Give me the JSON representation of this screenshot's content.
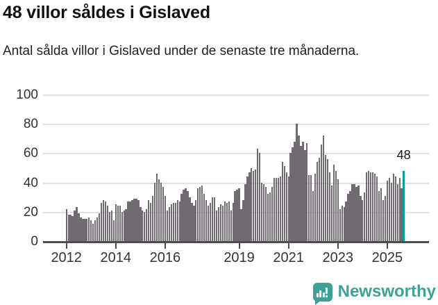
{
  "header": {
    "title": "48 villor såldes i Gislaved",
    "subtitle": "Antal sålda villor i Gislaved under de senaste tre månaderna."
  },
  "chart_data": {
    "type": "bar",
    "title": "48 villor såldes i Gislaved",
    "xlabel": "",
    "ylabel": "",
    "frequency": "monthly",
    "start_month": "2012-01",
    "end_month": "2025-09",
    "ylim": [
      0,
      100
    ],
    "grid": true,
    "legend": false,
    "y_ticks": [
      0,
      20,
      40,
      60,
      80,
      100
    ],
    "x_ticks": [
      {
        "label": "2012",
        "month_index": 0
      },
      {
        "label": "2014",
        "month_index": 24
      },
      {
        "label": "2016",
        "month_index": 48
      },
      {
        "label": "2019",
        "month_index": 84
      },
      {
        "label": "2021",
        "month_index": 108
      },
      {
        "label": "2023",
        "month_index": 132
      },
      {
        "label": "2025",
        "month_index": 156
      }
    ],
    "values": [
      22,
      18,
      18,
      17,
      21,
      23,
      19,
      16,
      15,
      15,
      15,
      16,
      14,
      12,
      14,
      16,
      19,
      26,
      28,
      27,
      24,
      20,
      21,
      14,
      25,
      24,
      24,
      20,
      21,
      22,
      27,
      27,
      28,
      29,
      29,
      28,
      23,
      21,
      20,
      22,
      28,
      26,
      31,
      40,
      46,
      42,
      40,
      37,
      31,
      21,
      23,
      25,
      26,
      26,
      28,
      27,
      32,
      35,
      36,
      34,
      30,
      26,
      24,
      28,
      36,
      37,
      38,
      32,
      28,
      24,
      26,
      30,
      30,
      21,
      23,
      25,
      24,
      27,
      26,
      27,
      21,
      26,
      34,
      35,
      36,
      22,
      28,
      39,
      44,
      47,
      50,
      48,
      49,
      63,
      60,
      40,
      39,
      37,
      32,
      33,
      37,
      43,
      43,
      43,
      44,
      54,
      51,
      47,
      44,
      60,
      64,
      68,
      80,
      72,
      65,
      68,
      62,
      67,
      45,
      45,
      34,
      46,
      54,
      57,
      66,
      72,
      59,
      56,
      47,
      38,
      52,
      48,
      42,
      22,
      24,
      23,
      27,
      32,
      34,
      39,
      39,
      37,
      38,
      31,
      28,
      33,
      47,
      48,
      47,
      47,
      46,
      44,
      34,
      36,
      28,
      31,
      41,
      43,
      40,
      46,
      44,
      39,
      43,
      36,
      48
    ],
    "highlight": {
      "index": 164,
      "value": 48,
      "label": "48"
    },
    "bar_color": "#6f6b70",
    "highlight_color": "#00a19a",
    "gridline_color": "#e2e2e2",
    "axis_color": "#4d4d4d"
  },
  "footer": {
    "brand": "Newsworthy",
    "brand_color": "#3fa098",
    "logo_icon": "newsworthy-bar-chart-bubble-icon"
  }
}
